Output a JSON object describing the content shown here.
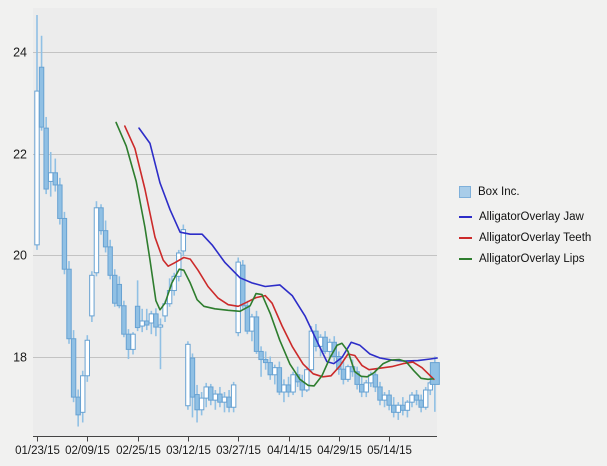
{
  "window": {
    "background": "#f1f1f0",
    "plot_background": "#ececec",
    "gridline_color": "#c3c3c3",
    "axis_color": "#444444",
    "label_color": "#1a1a1a"
  },
  "legend": {
    "items": [
      {
        "label": "Box Inc.",
        "swatch": "box",
        "color": "#a9cde9",
        "border": "#7fb0da"
      },
      {
        "label": "AlligatorOverlay Jaw",
        "swatch": "line",
        "color": "#2d2dc8"
      },
      {
        "label": "AlligatorOverlay Teeth",
        "swatch": "line",
        "color": "#cc2a2a"
      },
      {
        "label": "AlligatorOverlay Lips",
        "swatch": "line",
        "color": "#2e7d2e"
      }
    ]
  },
  "y_axis": {
    "tick_values": [
      24,
      22,
      20,
      18
    ]
  },
  "x_axis": {
    "ticks": [
      {
        "label": "01/23/15",
        "index": 0
      },
      {
        "label": "02/09/15",
        "index": 11
      },
      {
        "label": "02/25/15",
        "index": 22
      },
      {
        "label": "03/12/15",
        "index": 33
      },
      {
        "label": "03/27/15",
        "index": 44
      },
      {
        "label": "04/14/15",
        "index": 55
      },
      {
        "label": "04/29/15",
        "index": 66
      },
      {
        "label": "05/14/15",
        "index": 77
      }
    ]
  },
  "chart_data": {
    "type": "candlestick",
    "title": "",
    "symbol": "Box Inc.",
    "ylim": [
      16.3,
      24.9
    ],
    "grid": "horizontal-only",
    "legend_position": "right",
    "candle_up_style": "hollow",
    "candle_down_style": "filled",
    "candle_fill": "#90c0e4",
    "candle_stroke": "#68a2d2",
    "dates": [
      "01/23/15",
      "01/26/15",
      "01/27/15",
      "01/28/15",
      "01/29/15",
      "01/30/15",
      "02/02/15",
      "02/03/15",
      "02/04/15",
      "02/05/15",
      "02/06/15",
      "02/09/15",
      "02/10/15",
      "02/11/15",
      "02/12/15",
      "02/13/15",
      "02/17/15",
      "02/18/15",
      "02/19/15",
      "02/20/15",
      "02/23/15",
      "02/24/15",
      "02/25/15",
      "02/26/15",
      "02/27/15",
      "03/02/15",
      "03/03/15",
      "03/04/15",
      "03/05/15",
      "03/06/15",
      "03/09/15",
      "03/10/15",
      "03/11/15",
      "03/12/15",
      "03/13/15",
      "03/16/15",
      "03/17/15",
      "03/18/15",
      "03/19/15",
      "03/20/15",
      "03/23/15",
      "03/24/15",
      "03/25/15",
      "03/26/15",
      "03/27/15",
      "03/30/15",
      "03/31/15",
      "04/01/15",
      "04/02/15",
      "04/06/15",
      "04/07/15",
      "04/08/15",
      "04/09/15",
      "04/10/15",
      "04/13/15",
      "04/14/15",
      "04/15/15",
      "04/16/15",
      "04/17/15",
      "04/20/15",
      "04/21/15",
      "04/22/15",
      "04/23/15",
      "04/24/15",
      "04/27/15",
      "04/28/15",
      "04/29/15",
      "04/30/15",
      "05/01/15",
      "05/04/15",
      "05/05/15",
      "05/06/15",
      "05/07/15",
      "05/08/15",
      "05/11/15",
      "05/12/15",
      "05/13/15",
      "05/14/15",
      "05/15/15",
      "05/18/15",
      "05/19/15",
      "05/20/15",
      "05/21/15",
      "05/22/15",
      "05/26/15",
      "05/27/15",
      "05/28/15",
      "05/29/15"
    ],
    "ohlc": [
      [
        20.2,
        24.73,
        20.1,
        23.23
      ],
      [
        23.7,
        24.32,
        22.45,
        22.52
      ],
      [
        22.5,
        22.72,
        21.2,
        21.3
      ],
      [
        21.45,
        22.03,
        21.15,
        21.62
      ],
      [
        21.62,
        21.9,
        21.25,
        21.38
      ],
      [
        21.38,
        21.52,
        20.6,
        20.72
      ],
      [
        20.72,
        20.85,
        19.62,
        19.72
      ],
      [
        19.72,
        19.88,
        18.25,
        18.35
      ],
      [
        18.35,
        18.52,
        17.1,
        17.2
      ],
      [
        17.2,
        17.35,
        16.62,
        16.85
      ],
      [
        16.9,
        17.72,
        16.7,
        17.62
      ],
      [
        17.62,
        18.42,
        17.5,
        18.32
      ],
      [
        18.8,
        19.68,
        18.68,
        19.6
      ],
      [
        19.65,
        21.06,
        19.58,
        20.93
      ],
      [
        20.93,
        21.0,
        20.4,
        20.48
      ],
      [
        20.48,
        20.68,
        20.05,
        20.16
      ],
      [
        20.16,
        20.3,
        19.52,
        19.6
      ],
      [
        19.6,
        19.72,
        18.98,
        19.05
      ],
      [
        19.42,
        19.58,
        18.95,
        19.0
      ],
      [
        19.0,
        19.1,
        18.38,
        18.44
      ],
      [
        18.44,
        18.54,
        17.95,
        18.14
      ],
      [
        18.14,
        18.48,
        18.04,
        18.44
      ],
      [
        18.99,
        19.5,
        18.5,
        18.57
      ],
      [
        18.6,
        18.94,
        18.48,
        18.7
      ],
      [
        18.7,
        18.94,
        18.52,
        18.62
      ],
      [
        18.66,
        18.9,
        18.44,
        18.84
      ],
      [
        18.84,
        18.95,
        18.4,
        18.58
      ],
      [
        18.58,
        18.75,
        17.75,
        18.62
      ],
      [
        18.8,
        19.1,
        18.68,
        19.04
      ],
      [
        19.04,
        19.54,
        18.98,
        19.3
      ],
      [
        19.3,
        19.65,
        19.2,
        19.58
      ],
      [
        19.58,
        20.1,
        19.48,
        20.04
      ],
      [
        20.08,
        20.6,
        19.98,
        20.5
      ],
      [
        17.03,
        18.3,
        16.95,
        18.24
      ],
      [
        17.97,
        18.06,
        16.8,
        17.2
      ],
      [
        17.25,
        17.44,
        16.7,
        16.95
      ],
      [
        16.95,
        17.3,
        16.84,
        17.18
      ],
      [
        17.18,
        17.48,
        17.0,
        17.4
      ],
      [
        17.4,
        17.46,
        17.04,
        17.14
      ],
      [
        17.14,
        17.34,
        16.95,
        17.26
      ],
      [
        17.26,
        17.4,
        17.0,
        17.1
      ],
      [
        17.1,
        17.3,
        16.9,
        17.2
      ],
      [
        17.2,
        17.34,
        16.9,
        17.0
      ],
      [
        17.0,
        17.5,
        16.9,
        17.44
      ],
      [
        18.47,
        19.95,
        18.4,
        19.86
      ],
      [
        19.8,
        19.9,
        18.94,
        19.0
      ],
      [
        19.0,
        19.1,
        18.44,
        18.5
      ],
      [
        18.5,
        18.84,
        18.3,
        18.78
      ],
      [
        18.78,
        18.9,
        18.05,
        18.1
      ],
      [
        18.1,
        18.2,
        17.6,
        17.94
      ],
      [
        17.94,
        18.1,
        17.74,
        17.88
      ],
      [
        17.88,
        18.0,
        17.54,
        17.64
      ],
      [
        17.64,
        17.84,
        17.45,
        17.78
      ],
      [
        17.78,
        17.9,
        17.24,
        17.3
      ],
      [
        17.3,
        17.55,
        17.1,
        17.44
      ],
      [
        17.44,
        17.6,
        17.2,
        17.3
      ],
      [
        17.3,
        17.7,
        17.24,
        17.64
      ],
      [
        17.64,
        17.8,
        17.4,
        17.5
      ],
      [
        17.5,
        17.64,
        17.2,
        17.34
      ],
      [
        17.34,
        17.8,
        17.3,
        17.74
      ],
      [
        17.74,
        18.6,
        17.7,
        18.5
      ],
      [
        18.5,
        18.64,
        18.1,
        18.2
      ],
      [
        18.2,
        18.44,
        18.0,
        18.38
      ],
      [
        18.38,
        18.5,
        18.05,
        18.1
      ],
      [
        18.1,
        18.35,
        17.94,
        18.28
      ],
      [
        18.28,
        18.4,
        17.9,
        18.0
      ],
      [
        18.0,
        18.1,
        17.64,
        17.75
      ],
      [
        17.75,
        17.9,
        17.45,
        17.55
      ],
      [
        17.55,
        17.84,
        17.5,
        17.8
      ],
      [
        17.8,
        17.94,
        17.6,
        17.7
      ],
      [
        17.7,
        17.8,
        17.35,
        17.45
      ],
      [
        17.45,
        17.6,
        17.2,
        17.3
      ],
      [
        17.3,
        17.54,
        17.2,
        17.48
      ],
      [
        17.48,
        17.7,
        17.4,
        17.64
      ],
      [
        17.64,
        17.74,
        17.3,
        17.4
      ],
      [
        17.4,
        17.5,
        17.04,
        17.14
      ],
      [
        17.14,
        17.3,
        17.0,
        17.24
      ],
      [
        17.24,
        17.34,
        16.94,
        17.04
      ],
      [
        17.04,
        17.2,
        16.8,
        16.9
      ],
      [
        16.9,
        17.1,
        16.75,
        17.04
      ],
      [
        17.04,
        17.2,
        16.84,
        16.94
      ],
      [
        16.94,
        17.14,
        16.8,
        17.1
      ],
      [
        17.1,
        17.3,
        17.0,
        17.24
      ],
      [
        17.24,
        17.34,
        17.04,
        17.14
      ],
      [
        17.14,
        17.25,
        16.9,
        17.0
      ],
      [
        17.0,
        17.4,
        16.95,
        17.34
      ],
      [
        17.34,
        17.52,
        17.24,
        17.48
      ],
      [
        17.88,
        18.0,
        16.91,
        17.45
      ]
    ],
    "wide_last_candle": true,
    "series": [
      {
        "name": "AlligatorOverlay Jaw",
        "color": "#2d2dc8",
        "points": [
          [
            22.3,
            22.5
          ],
          [
            24.7,
            22.2
          ],
          [
            26.9,
            21.42
          ],
          [
            29.1,
            20.89
          ],
          [
            31.3,
            20.45
          ],
          [
            33.5,
            20.41
          ],
          [
            36.1,
            20.41
          ],
          [
            38.3,
            20.2
          ],
          [
            41.1,
            19.85
          ],
          [
            44.4,
            19.55
          ],
          [
            47.0,
            19.45
          ],
          [
            49.9,
            19.38
          ],
          [
            53.1,
            19.41
          ],
          [
            55.8,
            19.2
          ],
          [
            58.6,
            18.8
          ],
          [
            61.5,
            18.25
          ],
          [
            63.4,
            17.9
          ],
          [
            64.9,
            17.86
          ],
          [
            66.7,
            17.98
          ],
          [
            68.7,
            18.28
          ],
          [
            70.6,
            18.22
          ],
          [
            72.8,
            18.05
          ],
          [
            75.0,
            17.97
          ],
          [
            77.6,
            17.93
          ],
          [
            80.5,
            17.91
          ],
          [
            83.3,
            17.92
          ],
          [
            86.0,
            17.95
          ],
          [
            87.5,
            17.97
          ]
        ]
      },
      {
        "name": "AlligatorOverlay Teeth",
        "color": "#cc2a2a",
        "points": [
          [
            19.2,
            22.54
          ],
          [
            21.4,
            22.1
          ],
          [
            23.6,
            21.3
          ],
          [
            25.8,
            20.35
          ],
          [
            27.6,
            19.9
          ],
          [
            28.7,
            19.78
          ],
          [
            30.2,
            19.85
          ],
          [
            32.1,
            19.95
          ],
          [
            33.5,
            19.92
          ],
          [
            35.2,
            19.7
          ],
          [
            37.4,
            19.38
          ],
          [
            39.6,
            19.15
          ],
          [
            41.8,
            19.02
          ],
          [
            44.0,
            18.99
          ],
          [
            45.9,
            19.07
          ],
          [
            47.9,
            19.16
          ],
          [
            49.9,
            19.2
          ],
          [
            51.4,
            19.05
          ],
          [
            53.6,
            18.6
          ],
          [
            55.8,
            18.2
          ],
          [
            58.2,
            17.85
          ],
          [
            60.4,
            17.66
          ],
          [
            62.5,
            17.6
          ],
          [
            64.3,
            17.62
          ],
          [
            66.3,
            17.82
          ],
          [
            68.0,
            18.05
          ],
          [
            69.5,
            18.02
          ],
          [
            71.1,
            17.82
          ],
          [
            72.6,
            17.74
          ],
          [
            75.0,
            17.77
          ],
          [
            77.6,
            17.8
          ],
          [
            80.1,
            17.86
          ],
          [
            82.2,
            17.89
          ],
          [
            84.2,
            17.78
          ],
          [
            86.0,
            17.62
          ],
          [
            86.8,
            17.55
          ]
        ]
      },
      {
        "name": "AlligatorOverlay Lips",
        "color": "#2e7d2e",
        "points": [
          [
            17.3,
            22.61
          ],
          [
            19.5,
            22.15
          ],
          [
            21.7,
            21.45
          ],
          [
            23.6,
            20.55
          ],
          [
            24.7,
            19.9
          ],
          [
            26.0,
            19.1
          ],
          [
            26.9,
            18.92
          ],
          [
            28.0,
            19.05
          ],
          [
            29.5,
            19.45
          ],
          [
            31.1,
            19.72
          ],
          [
            32.1,
            19.7
          ],
          [
            33.5,
            19.45
          ],
          [
            35.0,
            19.12
          ],
          [
            36.5,
            18.99
          ],
          [
            38.9,
            18.94
          ],
          [
            41.8,
            18.91
          ],
          [
            44.4,
            18.89
          ],
          [
            46.6,
            19.0
          ],
          [
            47.9,
            19.24
          ],
          [
            49.2,
            19.22
          ],
          [
            51.0,
            18.85
          ],
          [
            53.1,
            18.32
          ],
          [
            55.3,
            17.85
          ],
          [
            57.5,
            17.55
          ],
          [
            59.3,
            17.43
          ],
          [
            60.6,
            17.42
          ],
          [
            62.3,
            17.62
          ],
          [
            64.1,
            17.98
          ],
          [
            65.6,
            18.22
          ],
          [
            66.7,
            18.26
          ],
          [
            68.0,
            18.1
          ],
          [
            69.5,
            17.7
          ],
          [
            70.9,
            17.61
          ],
          [
            72.2,
            17.6
          ],
          [
            73.7,
            17.68
          ],
          [
            75.7,
            17.86
          ],
          [
            77.4,
            17.93
          ],
          [
            79.2,
            17.94
          ],
          [
            80.7,
            17.9
          ],
          [
            82.4,
            17.72
          ],
          [
            84.0,
            17.57
          ],
          [
            85.5,
            17.55
          ],
          [
            86.6,
            17.56
          ]
        ]
      }
    ]
  }
}
